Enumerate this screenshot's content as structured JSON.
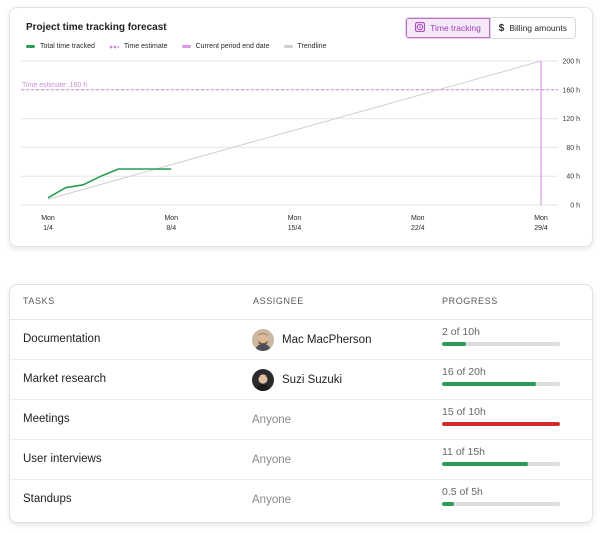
{
  "chart": {
    "title": "Project time tracking forecast",
    "toggle": [
      {
        "label": "Time tracking",
        "icon": "clock-icon",
        "active": true
      },
      {
        "label": "Billing amounts",
        "icon": "dollar-icon",
        "active": false
      }
    ],
    "legend": [
      {
        "label": "Total time tracked",
        "color": "#2a9d55",
        "style": "solid"
      },
      {
        "label": "Time estimate",
        "color": "#c890d6",
        "style": "dots"
      },
      {
        "label": "Current period end date",
        "color": "#d99be6",
        "style": "solid"
      },
      {
        "label": "Trendline",
        "color": "#cfcfd4",
        "style": "solid"
      }
    ],
    "estimate_label": "Time estimate: 160 h"
  },
  "chart_data": {
    "type": "line",
    "title": "Project time tracking forecast",
    "x_ticks": [
      {
        "day": 1,
        "line1": "Mon",
        "line2": "1/4"
      },
      {
        "day": 8,
        "line1": "Mon",
        "line2": "8/4"
      },
      {
        "day": 15,
        "line1": "Mon",
        "line2": "15/4"
      },
      {
        "day": 22,
        "line1": "Mon",
        "line2": "22/4"
      },
      {
        "day": 29,
        "line1": "Mon",
        "line2": "29/4"
      }
    ],
    "xlim": [
      1,
      29
    ],
    "ylim": [
      0,
      200
    ],
    "y_ticks": [
      0,
      40,
      80,
      120,
      160,
      200
    ],
    "y_tick_labels": [
      "0 h",
      "40 h",
      "80 h",
      "120 h",
      "160 h",
      "200 h"
    ],
    "series": [
      {
        "name": "Total time tracked",
        "color": "#2a9d55",
        "x": [
          1,
          2,
          3,
          4,
          5,
          6,
          7,
          8
        ],
        "y": [
          10,
          24,
          28,
          40,
          50,
          50,
          50,
          50
        ]
      },
      {
        "name": "Trendline",
        "color": "#cfcfd4",
        "x": [
          1,
          29
        ],
        "y": [
          8,
          200
        ]
      }
    ],
    "estimate": 160,
    "period_end": 29,
    "grid": true
  },
  "table": {
    "headers": {
      "tasks": "TASKS",
      "assignee": "ASSIGNEE",
      "progress": "PROGRESS"
    },
    "rows": [
      {
        "task": "Documentation",
        "assignee": "Mac MacPherson",
        "avatar": "mac",
        "progress_text": "2 of 10h",
        "ratio": 0.2,
        "over": false
      },
      {
        "task": "Market research",
        "assignee": "Suzi Suzuki",
        "avatar": "suzi",
        "progress_text": "16 of 20h",
        "ratio": 0.8,
        "over": false
      },
      {
        "task": "Meetings",
        "assignee": "Anyone",
        "avatar": "",
        "progress_text": "15 of 10h",
        "ratio": 1.0,
        "over": true
      },
      {
        "task": "User interviews",
        "assignee": "Anyone",
        "avatar": "",
        "progress_text": "11 of 15h",
        "ratio": 0.73,
        "over": false
      },
      {
        "task": "Standups",
        "assignee": "Anyone",
        "avatar": "",
        "progress_text": "0.5 of 5h",
        "ratio": 0.1,
        "over": false
      }
    ]
  }
}
